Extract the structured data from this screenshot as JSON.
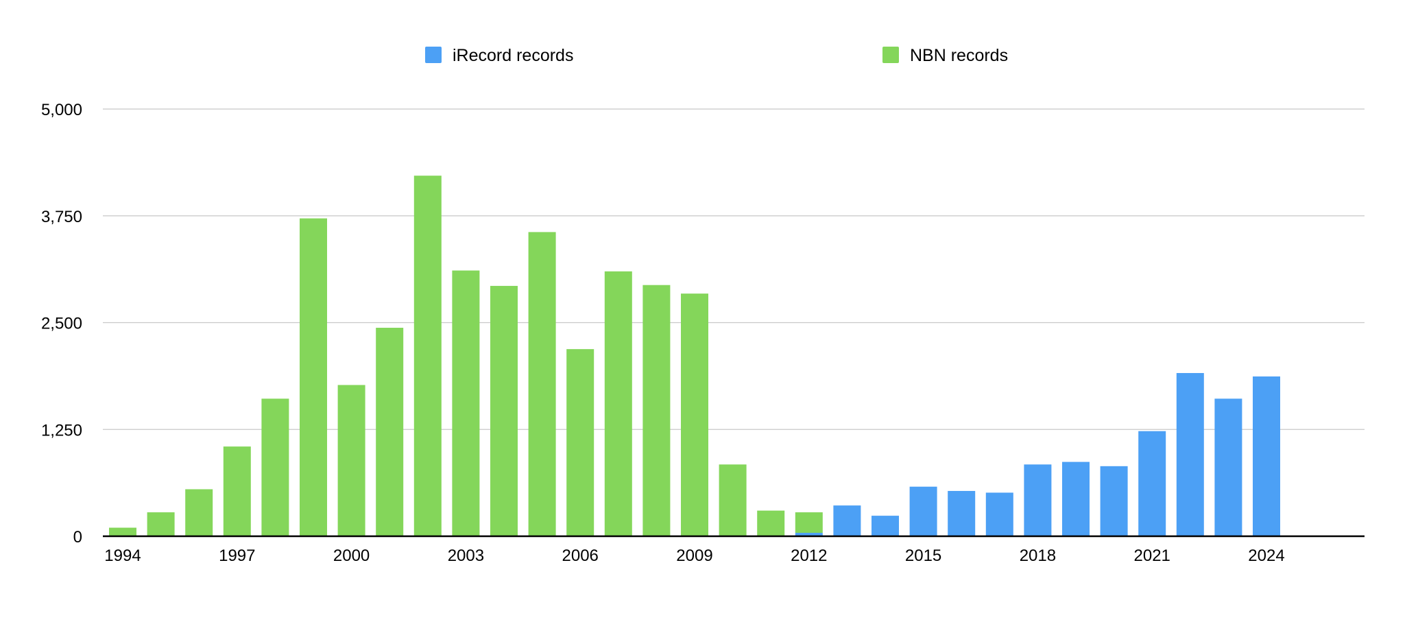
{
  "chart_data": {
    "type": "bar",
    "title": "",
    "xlabel": "",
    "ylabel": "",
    "ylim": [
      0,
      5000
    ],
    "y_ticks": [
      "0",
      "1,250",
      "2,500",
      "3,750",
      "5,000"
    ],
    "y_tick_values": [
      0,
      1250,
      2500,
      3750,
      5000
    ],
    "categories": [
      1994,
      1995,
      1996,
      1997,
      1998,
      1999,
      2000,
      2001,
      2002,
      2003,
      2004,
      2005,
      2006,
      2007,
      2008,
      2009,
      2010,
      2011,
      2012,
      2013,
      2014,
      2015,
      2016,
      2017,
      2018,
      2019,
      2020,
      2021,
      2022,
      2023,
      2024,
      2025,
      2026
    ],
    "x_tick_labels": [
      "1994",
      "1997",
      "2000",
      "2003",
      "2006",
      "2009",
      "2012",
      "2015",
      "2018",
      "2021",
      "2024"
    ],
    "legend_position": "top",
    "grid": true,
    "series": [
      {
        "name": "iRecord records",
        "color": "#4ca0f5",
        "values": [
          0,
          0,
          0,
          0,
          0,
          0,
          0,
          0,
          0,
          0,
          0,
          0,
          0,
          0,
          0,
          0,
          0,
          0,
          40,
          360,
          240,
          580,
          530,
          510,
          840,
          870,
          820,
          1230,
          1910,
          1610,
          1870,
          0,
          0
        ]
      },
      {
        "name": "NBN records",
        "color": "#84d65a",
        "values": [
          100,
          280,
          550,
          1050,
          1610,
          3720,
          1770,
          2440,
          4220,
          3110,
          2930,
          3560,
          2190,
          3100,
          2940,
          2840,
          840,
          300,
          240,
          0,
          0,
          0,
          0,
          0,
          0,
          0,
          0,
          0,
          0,
          0,
          0,
          0,
          0
        ]
      }
    ]
  }
}
